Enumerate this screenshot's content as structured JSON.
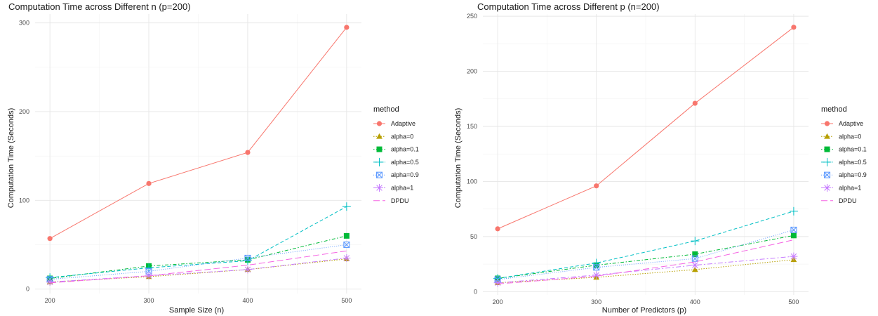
{
  "chart_data": [
    {
      "type": "line",
      "title": "Computation Time across Different n (p=200)",
      "xlabel": "Sample Size (n)",
      "ylabel": "Computation Time (Seconds)",
      "x": [
        200,
        300,
        400,
        500
      ],
      "xticks": [
        200,
        300,
        400,
        500
      ],
      "yticks": [
        0,
        100,
        200,
        300
      ],
      "xlim": [
        185,
        515
      ],
      "ylim": [
        -5,
        310
      ],
      "grid": true,
      "legend_title": "method",
      "legend_position": "right",
      "series": [
        {
          "name": "Adaptive",
          "values": [
            57,
            119,
            154,
            295
          ],
          "color": "#F8766D",
          "marker": "circle",
          "dash": "solid"
        },
        {
          "name": "alpha=0",
          "values": [
            8,
            14,
            22,
            34
          ],
          "color": "#B79F00",
          "marker": "triangle",
          "dash": "dotted"
        },
        {
          "name": "alpha=0.1",
          "values": [
            12,
            26,
            33,
            60
          ],
          "color": "#00BA38",
          "marker": "square",
          "dash": "dotdash"
        },
        {
          "name": "alpha=0.5",
          "values": [
            13,
            24,
            32,
            93
          ],
          "color": "#00BFC4",
          "marker": "plus",
          "dash": "dashed"
        },
        {
          "name": "alpha=0.9",
          "values": [
            11,
            20,
            35,
            50
          ],
          "color": "#619CFF",
          "marker": "boxx",
          "dash": "finedot"
        },
        {
          "name": "alpha=1",
          "values": [
            8,
            15,
            22,
            35
          ],
          "color": "#C77CFF",
          "marker": "star",
          "dash": "dashdot"
        },
        {
          "name": "DPDU",
          "values": [
            7,
            15,
            27,
            43
          ],
          "color": "#F564E3",
          "marker": "none",
          "dash": "longdash"
        }
      ]
    },
    {
      "type": "line",
      "title": "Computation Time across Different p (n=200)",
      "xlabel": "Number of Predictors (p)",
      "ylabel": "Computation Time (Seconds)",
      "x": [
        200,
        300,
        400,
        500
      ],
      "xticks": [
        200,
        300,
        400,
        500
      ],
      "yticks": [
        0,
        50,
        100,
        150,
        200,
        250
      ],
      "xlim": [
        185,
        515
      ],
      "ylim": [
        -3,
        252
      ],
      "grid": true,
      "legend_title": "method",
      "legend_position": "right",
      "series": [
        {
          "name": "Adaptive",
          "values": [
            57,
            96,
            171,
            240
          ],
          "color": "#F8766D",
          "marker": "circle",
          "dash": "solid"
        },
        {
          "name": "alpha=0",
          "values": [
            8,
            13,
            20,
            29
          ],
          "color": "#B79F00",
          "marker": "triangle",
          "dash": "dotted"
        },
        {
          "name": "alpha=0.1",
          "values": [
            12,
            24,
            34,
            51
          ],
          "color": "#00BA38",
          "marker": "square",
          "dash": "dotdash"
        },
        {
          "name": "alpha=0.5",
          "values": [
            12,
            26,
            46,
            73
          ],
          "color": "#00BFC4",
          "marker": "plus",
          "dash": "dashed"
        },
        {
          "name": "alpha=0.9",
          "values": [
            11,
            22,
            30,
            56
          ],
          "color": "#619CFF",
          "marker": "boxx",
          "dash": "finedot"
        },
        {
          "name": "alpha=1",
          "values": [
            8,
            15,
            24,
            32
          ],
          "color": "#C77CFF",
          "marker": "star",
          "dash": "dashdot"
        },
        {
          "name": "DPDU",
          "values": [
            7,
            14,
            27,
            47
          ],
          "color": "#F564E3",
          "marker": "none",
          "dash": "longdash"
        }
      ]
    }
  ]
}
